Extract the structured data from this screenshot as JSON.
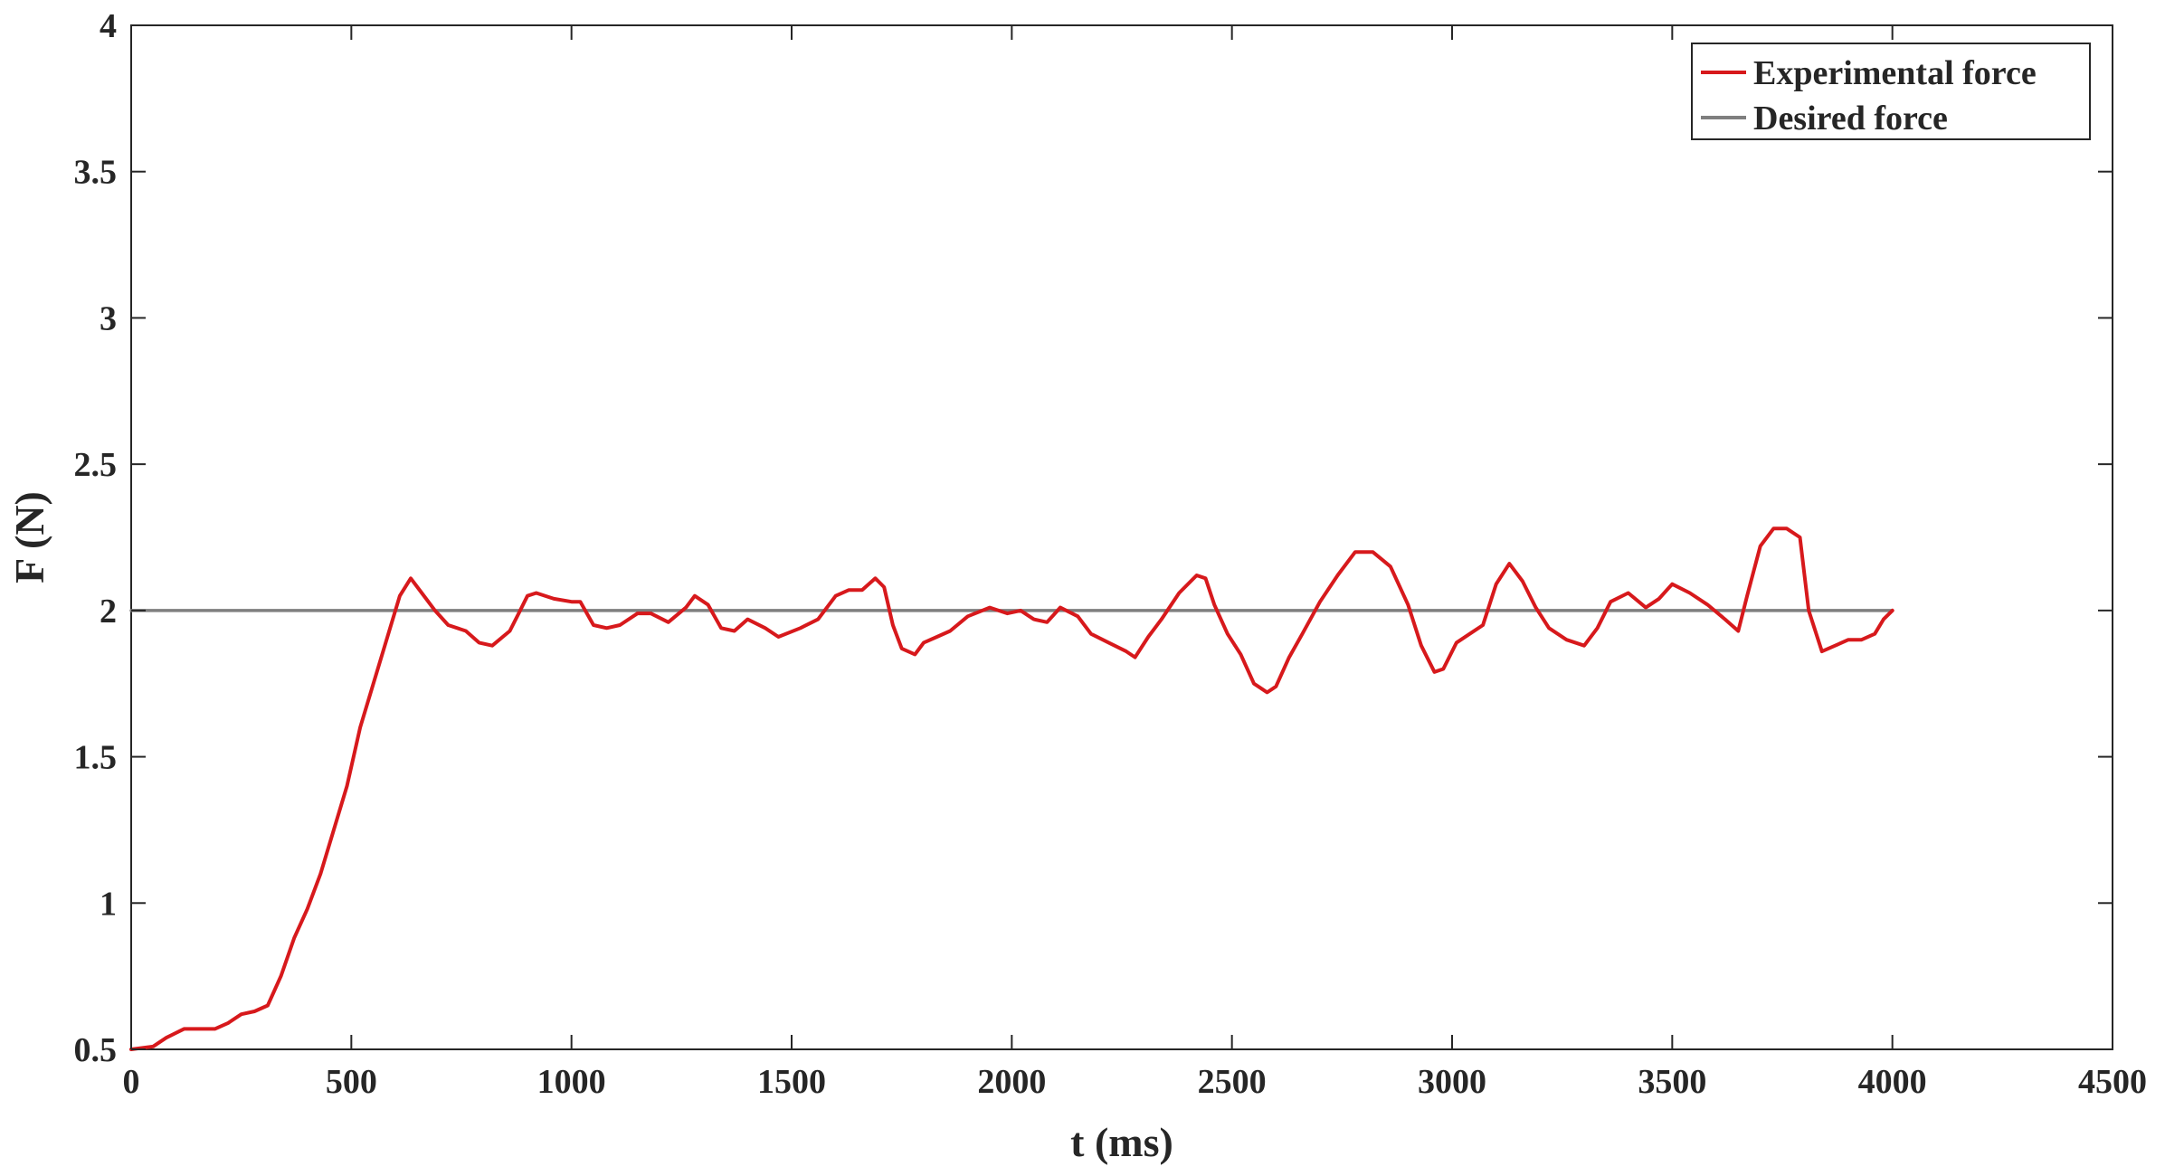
{
  "chart_data": {
    "type": "line",
    "title": "",
    "xlabel": "t (ms)",
    "ylabel": "F (N)",
    "xlim": [
      0,
      4500
    ],
    "ylim": [
      0.5,
      4
    ],
    "xticks": [
      0,
      500,
      1000,
      1500,
      2000,
      2500,
      3000,
      3500,
      4000,
      4500
    ],
    "yticks": [
      0.5,
      1,
      1.5,
      2,
      2.5,
      3,
      3.5,
      4
    ],
    "xtick_labels": [
      "0",
      "500",
      "1000",
      "1500",
      "2000",
      "2500",
      "3000",
      "3500",
      "4000",
      "4500"
    ],
    "ytick_labels": [
      "0.5",
      "1",
      "1.5",
      "2",
      "2.5",
      "3",
      "3.5",
      "4"
    ],
    "grid": false,
    "legend_position": "top-right",
    "series": [
      {
        "name": "Experimental force",
        "color": "#d7191c",
        "x": [
          0,
          50,
          80,
          120,
          150,
          190,
          220,
          250,
          280,
          310,
          340,
          370,
          400,
          430,
          460,
          490,
          520,
          550,
          580,
          610,
          635,
          660,
          690,
          720,
          760,
          790,
          820,
          860,
          880,
          900,
          920,
          960,
          1000,
          1020,
          1050,
          1080,
          1110,
          1150,
          1180,
          1220,
          1260,
          1280,
          1310,
          1340,
          1370,
          1400,
          1440,
          1470,
          1520,
          1560,
          1600,
          1630,
          1660,
          1690,
          1710,
          1730,
          1750,
          1780,
          1800,
          1830,
          1860,
          1900,
          1950,
          1990,
          2020,
          2050,
          2080,
          2110,
          2150,
          2180,
          2220,
          2260,
          2280,
          2310,
          2340,
          2380,
          2420,
          2440,
          2460,
          2490,
          2520,
          2550,
          2580,
          2600,
          2630,
          2660,
          2700,
          2740,
          2780,
          2820,
          2860,
          2900,
          2930,
          2960,
          2980,
          3010,
          3040,
          3070,
          3100,
          3130,
          3160,
          3190,
          3220,
          3260,
          3300,
          3330,
          3360,
          3400,
          3440,
          3470,
          3500,
          3540,
          3580,
          3620,
          3650,
          3670,
          3700,
          3730,
          3760,
          3790,
          3810,
          3840,
          3870,
          3900,
          3930,
          3960,
          3980,
          4000
        ],
        "y": [
          0.5,
          0.51,
          0.54,
          0.57,
          0.57,
          0.57,
          0.59,
          0.62,
          0.63,
          0.65,
          0.75,
          0.88,
          0.98,
          1.1,
          1.25,
          1.4,
          1.6,
          1.75,
          1.9,
          2.05,
          2.11,
          2.06,
          2.0,
          1.95,
          1.93,
          1.89,
          1.88,
          1.93,
          1.99,
          2.05,
          2.06,
          2.04,
          2.03,
          2.03,
          1.95,
          1.94,
          1.95,
          1.99,
          1.99,
          1.96,
          2.01,
          2.05,
          2.02,
          1.94,
          1.93,
          1.97,
          1.94,
          1.91,
          1.94,
          1.97,
          2.05,
          2.07,
          2.07,
          2.11,
          2.08,
          1.95,
          1.87,
          1.85,
          1.89,
          1.91,
          1.93,
          1.98,
          2.01,
          1.99,
          2.0,
          1.97,
          1.96,
          2.01,
          1.98,
          1.92,
          1.89,
          1.86,
          1.84,
          1.91,
          1.97,
          2.06,
          2.12,
          2.11,
          2.02,
          1.92,
          1.85,
          1.75,
          1.72,
          1.74,
          1.84,
          1.92,
          2.03,
          2.12,
          2.2,
          2.2,
          2.15,
          2.02,
          1.88,
          1.79,
          1.8,
          1.89,
          1.92,
          1.95,
          2.09,
          2.16,
          2.1,
          2.01,
          1.94,
          1.9,
          1.88,
          1.94,
          2.03,
          2.06,
          2.01,
          2.04,
          2.09,
          2.06,
          2.02,
          1.97,
          1.93,
          2.05,
          2.22,
          2.28,
          2.28,
          2.25,
          2.0,
          1.86,
          1.88,
          1.9,
          1.9,
          1.92,
          1.97,
          2.0
        ]
      },
      {
        "name": "Desired force",
        "color": "#7f7f7f",
        "x": [
          0,
          4000
        ],
        "y": [
          2,
          2
        ]
      }
    ]
  }
}
